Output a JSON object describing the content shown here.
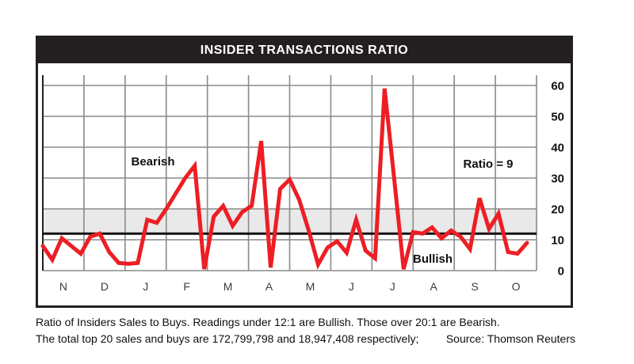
{
  "title": "INSIDER TRANSACTIONS RATIO",
  "footer": {
    "line1": "Ratio of Insiders Sales to Buys. Readings under 12:1 are Bullish. Those over 20:1 are Bearish.",
    "line2": "The total top 20 sales and buys are 172,799,798 and 18,947,408 respectively;",
    "source": "Source: Thomson Reuters"
  },
  "chart_data": {
    "type": "line",
    "title": "INSIDER TRANSACTIONS RATIO",
    "xlabel": "",
    "ylabel": "",
    "x_unit": "weeks (Nov through Oct)",
    "categories": [
      "N",
      "D",
      "J",
      "F",
      "M",
      "A",
      "M",
      "J",
      "J",
      "A",
      "S",
      "O"
    ],
    "values": [
      8,
      3.5,
      10.5,
      8,
      5.5,
      11,
      12,
      6,
      2.5,
      2.2,
      2.5,
      16.5,
      15.5,
      20,
      25,
      30,
      34,
      0.5,
      17.5,
      21,
      14.5,
      19,
      21,
      42,
      1,
      26.5,
      29.5,
      23,
      13,
      2,
      7.5,
      9.5,
      5.8,
      16.5,
      6.5,
      4,
      59,
      30,
      0.5,
      12.5,
      12,
      14,
      10.5,
      13,
      11,
      7,
      23.5,
      13.5,
      18.5,
      6,
      5.5,
      9
    ],
    "ylim": [
      0,
      60
    ],
    "yticks": [
      0,
      10,
      20,
      30,
      40,
      50,
      60
    ],
    "grid": true,
    "band": {
      "from": 12,
      "to": 20,
      "color": "#e9e9e9"
    },
    "threshold_line": {
      "value": 12,
      "color": "#111111"
    },
    "annotations": {
      "bearish": "Bearish",
      "bullish": "Bullish",
      "ratio": "Ratio = 9"
    },
    "latest_ratio": 9,
    "line_color": "#ed1e24",
    "grid_color": "#8a8a8a"
  }
}
